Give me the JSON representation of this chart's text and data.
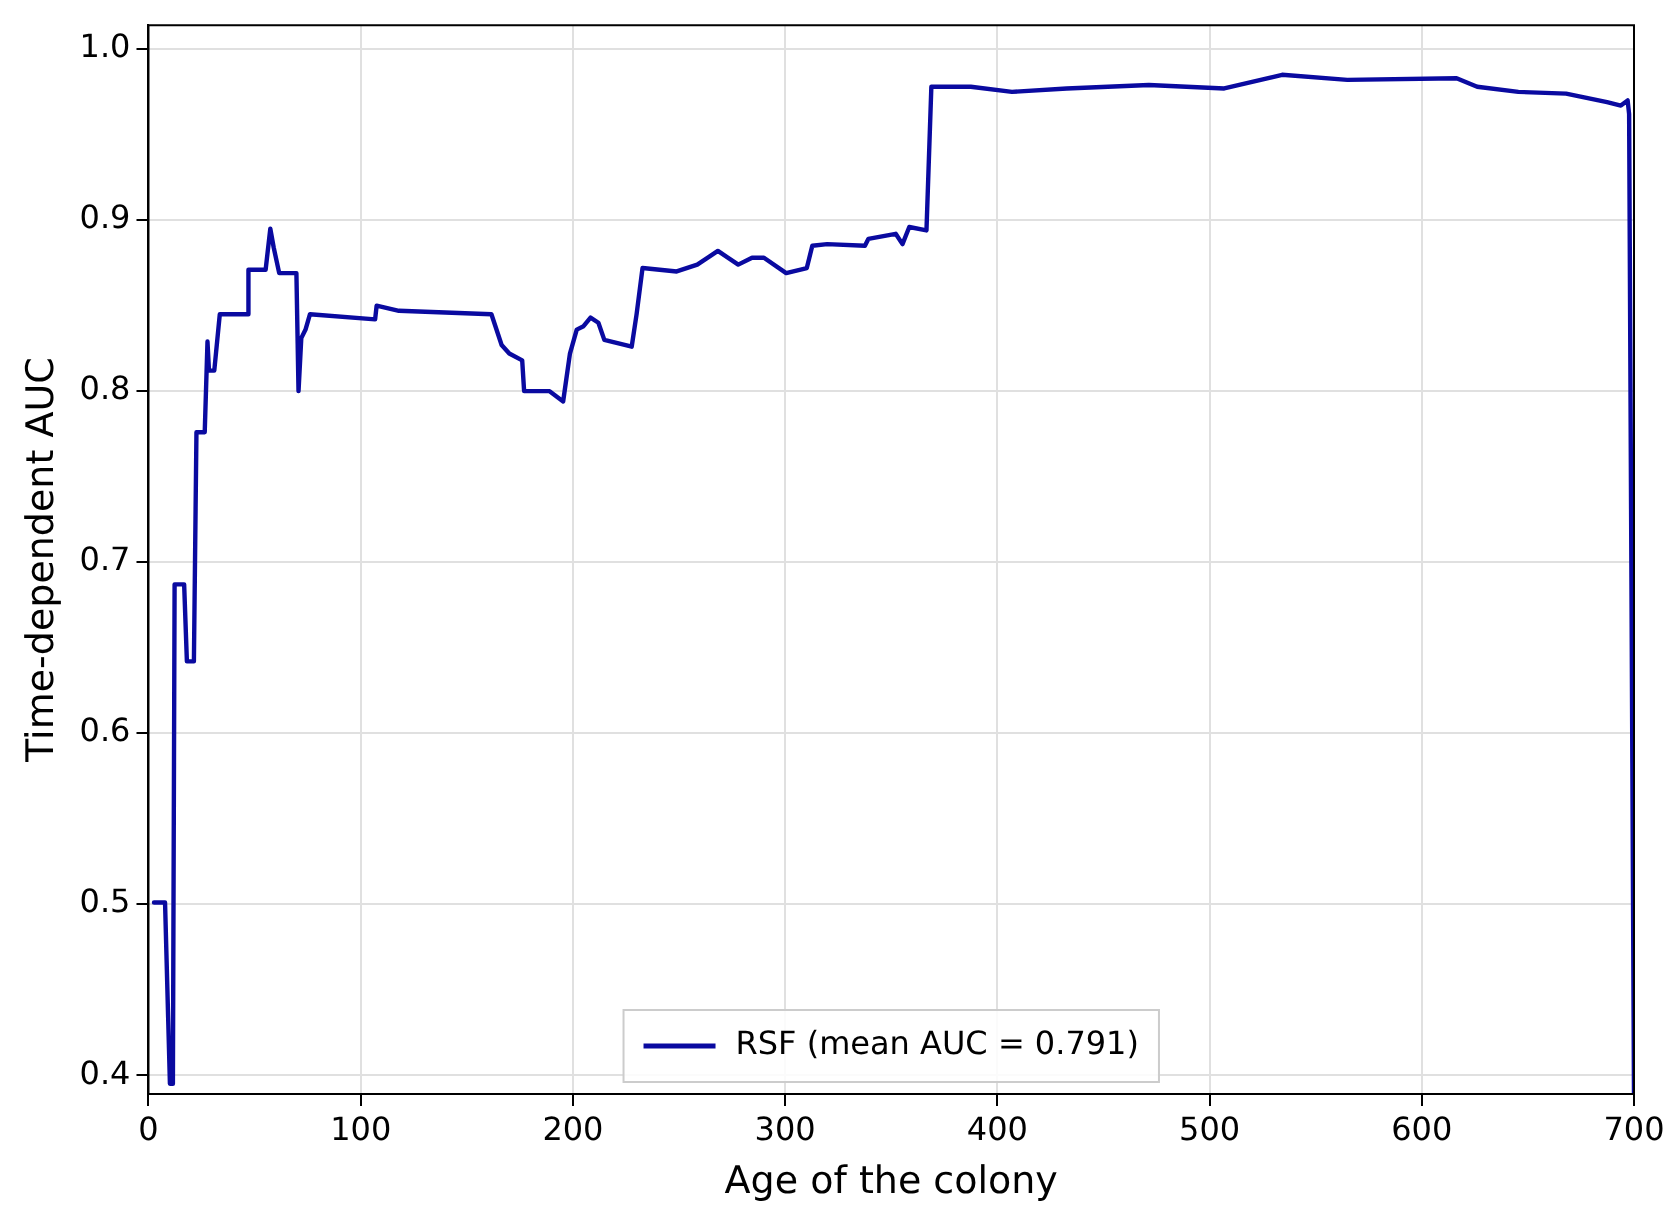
{
  "chart_data": {
    "type": "line",
    "xlabel": "Age of the colony",
    "ylabel": "Time-dependent AUC",
    "xlim": [
      0,
      700
    ],
    "xticks": [
      0,
      100,
      200,
      300,
      400,
      500,
      600,
      700
    ],
    "ylim": [
      0.389,
      1.014
    ],
    "yticks": [
      0.4,
      0.5,
      0.6,
      0.7,
      0.8,
      0.9,
      {
        "value": 1,
        "label": "1.0"
      }
    ],
    "grid": true,
    "legend": "bottom",
    "marker": "none",
    "line_style": "solid",
    "series": [
      {
        "name": "RSF (mean AUC = 0.791)",
        "color": "#0a0aa0",
        "x": [
          2.6,
          7.8,
          10.1,
          11.5,
          12.3,
          16.8,
          18.1,
          21.4,
          22.6,
          26.5,
          27.8,
          28.5,
          31,
          33.6,
          47.1,
          47.1,
          55.2,
          57.4,
          59,
          61.6,
          69.7,
          70.7,
          72,
          74,
          76.1,
          106.8,
          107.5,
          118,
          161.6,
          166.4,
          170,
          176.1,
          177,
          189,
          195.4,
          198.6,
          201.8,
          205,
          208.3,
          212,
          214.8,
          227.7,
          230,
          232.8,
          248.9,
          258.6,
          268.3,
          277.9,
          284.4,
          290,
          300.5,
          310.2,
          312.8,
          319.8,
          337.6,
          339.2,
          352.1,
          355.3,
          358.5,
          366.6,
          368.9,
          387.5,
          406.9,
          432.7,
          471.4,
          506.9,
          534.2,
          564.9,
          616.4,
          626.1,
          645.5,
          668,
          687.3,
          693.8,
          697,
          697.7,
          700
        ],
        "values": [
          0.501,
          0.501,
          0.395,
          0.395,
          0.687,
          0.687,
          0.642,
          0.642,
          0.776,
          0.776,
          0.829,
          0.812,
          0.812,
          0.845,
          0.845,
          0.871,
          0.871,
          0.895,
          0.884,
          0.869,
          0.869,
          0.8,
          0.831,
          0.836,
          0.845,
          0.842,
          0.85,
          0.847,
          0.845,
          0.827,
          0.822,
          0.818,
          0.8,
          0.8,
          0.794,
          0.822,
          0.836,
          0.838,
          0.843,
          0.84,
          0.83,
          0.826,
          0.845,
          0.872,
          0.87,
          0.874,
          0.882,
          0.874,
          0.878,
          0.878,
          0.869,
          0.872,
          0.885,
          0.886,
          0.885,
          0.889,
          0.892,
          0.886,
          0.896,
          0.894,
          0.978,
          0.978,
          0.975,
          0.977,
          0.979,
          0.977,
          0.985,
          0.982,
          0.983,
          0.978,
          0.975,
          0.974,
          0.969,
          0.967,
          0.97,
          0.962,
          0.389
        ]
      }
    ]
  }
}
